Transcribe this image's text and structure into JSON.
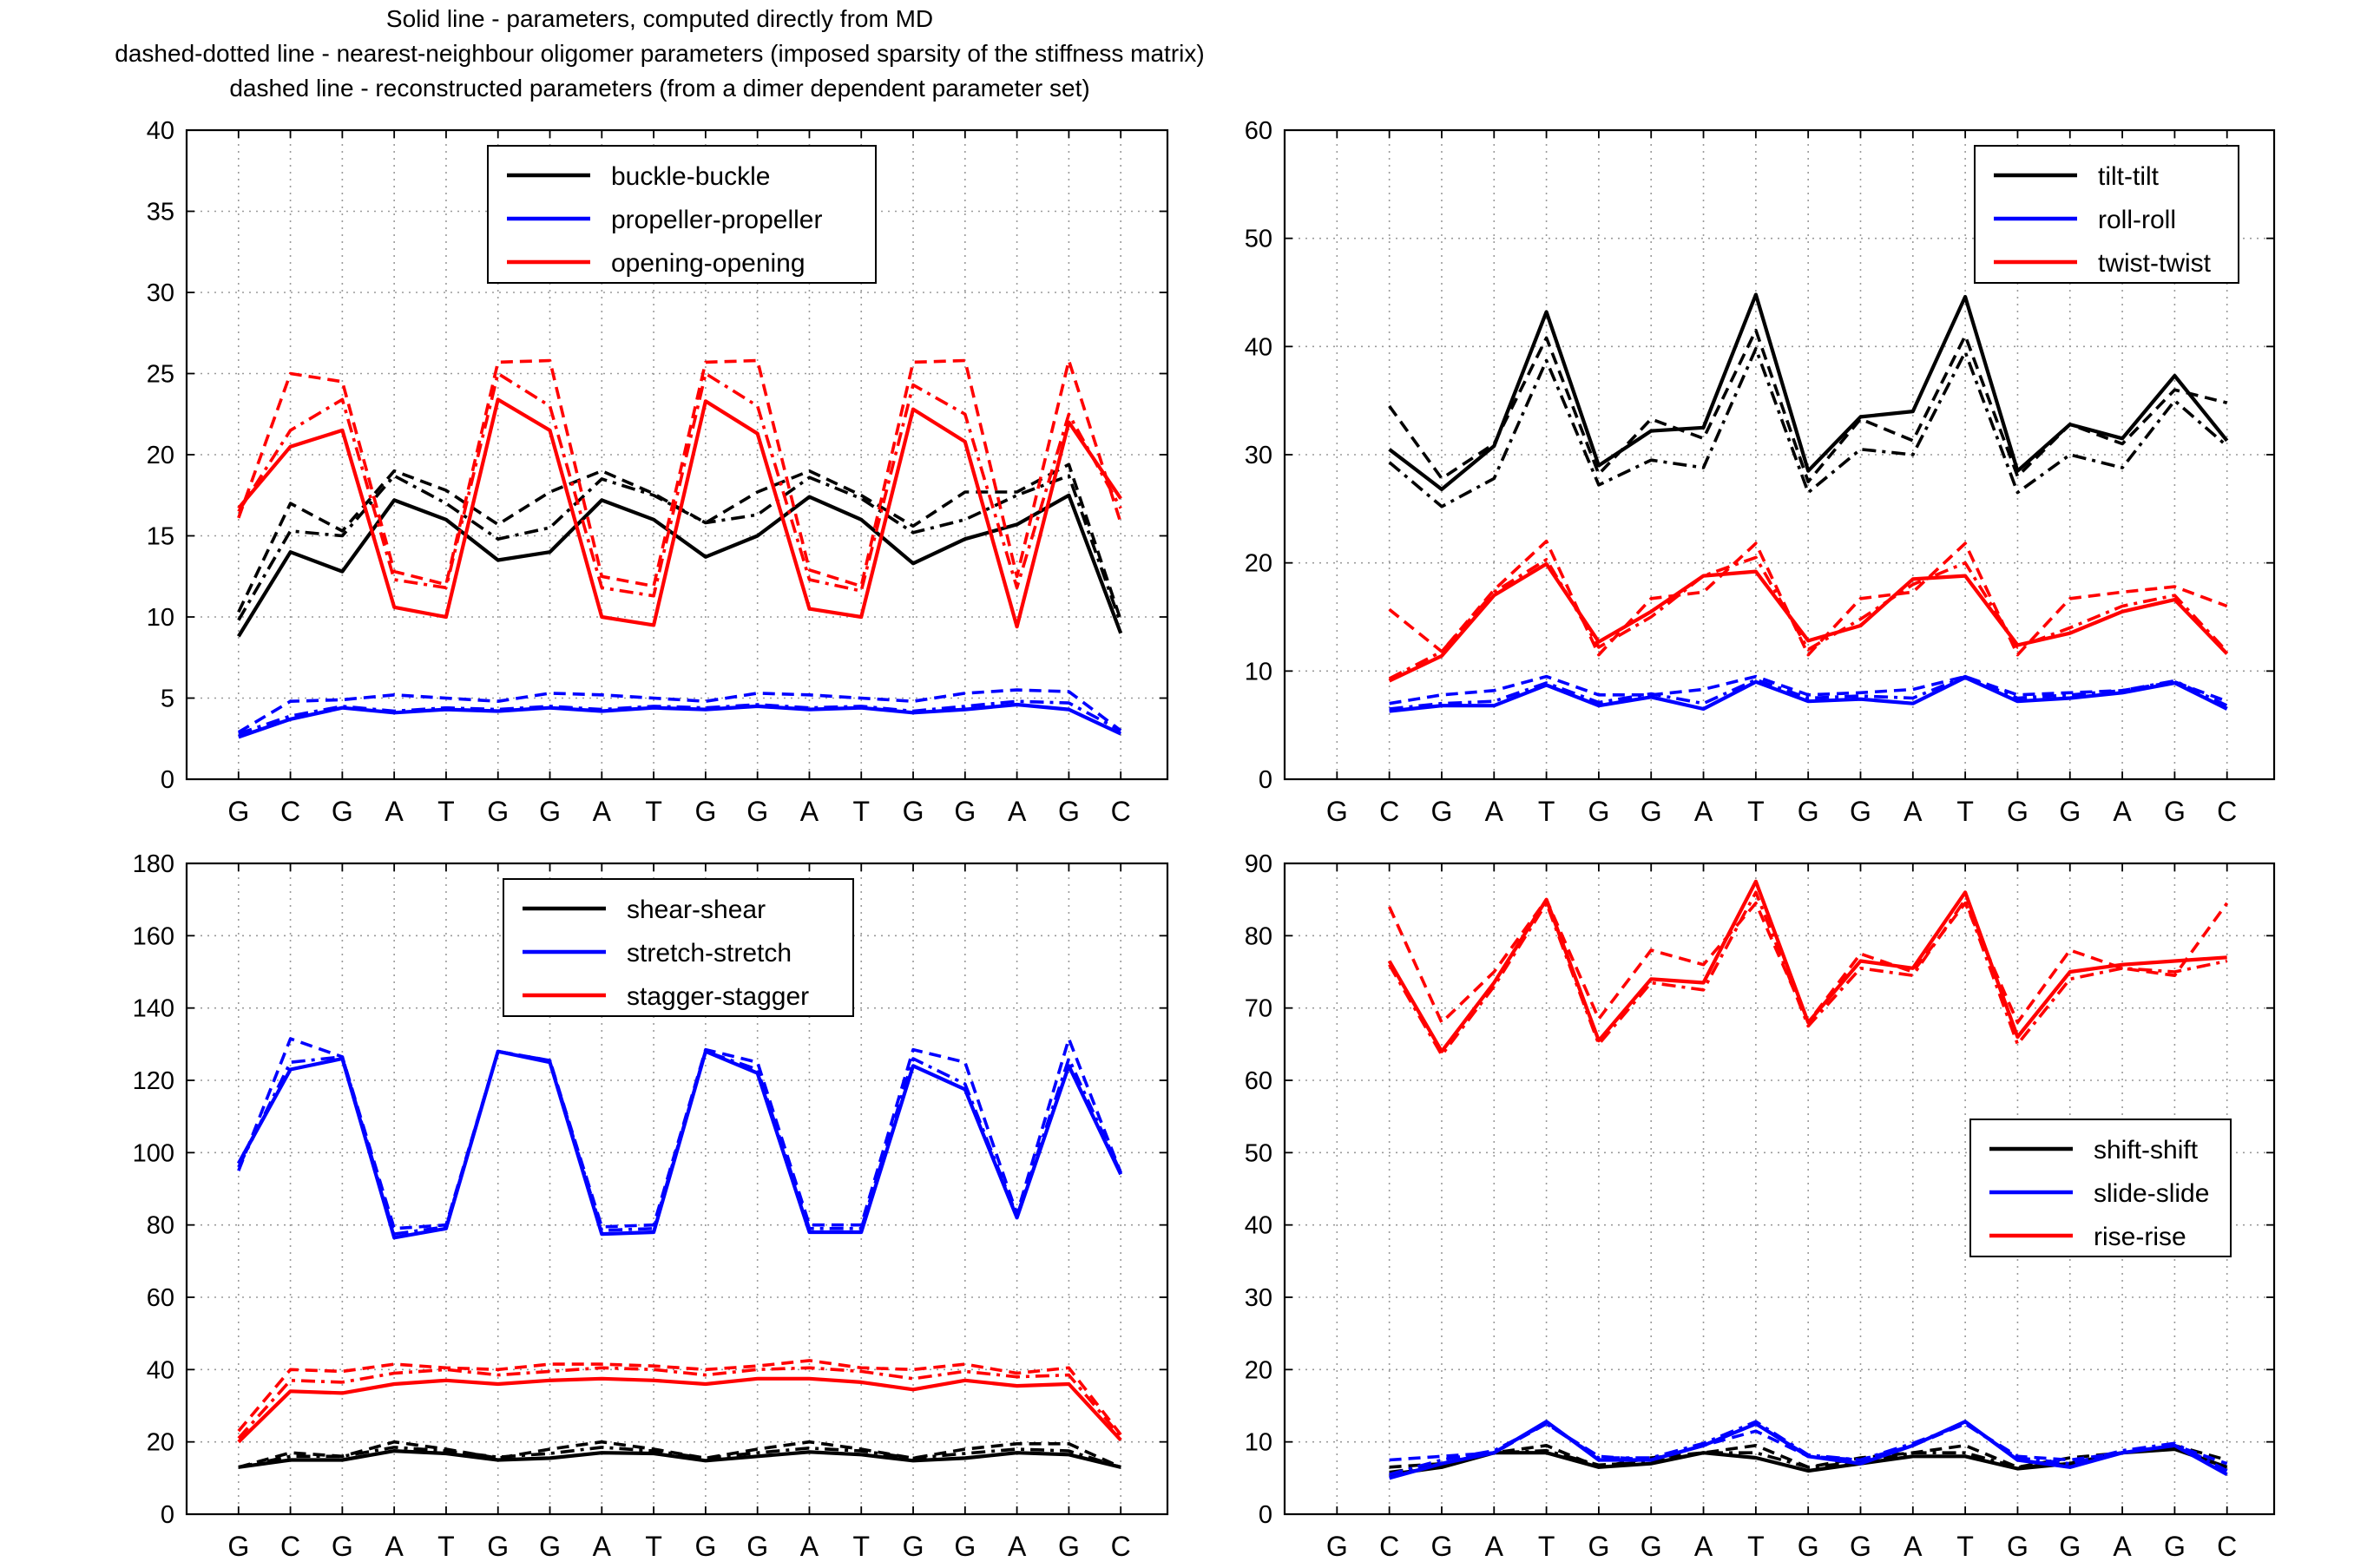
{
  "header": {
    "line1": "Solid line - parameters, computed directly from MD",
    "line2": "dashed-dotted line - nearest-neighbour oligomer parameters (imposed sparsity of the stiffness matrix)",
    "line3": "dashed line - reconstructed parameters (from a dimer dependent parameter set)"
  },
  "colors": {
    "black": "#000000",
    "blue": "#0000ff",
    "red": "#ff0000",
    "grid": "#9a9a9a"
  },
  "chart_data": [
    {
      "type": "line",
      "position_word": "top-left",
      "categories": [
        "G",
        "C",
        "G",
        "A",
        "T",
        "G",
        "G",
        "A",
        "T",
        "G",
        "G",
        "A",
        "T",
        "G",
        "G",
        "A",
        "G",
        "C"
      ],
      "x_index": [
        1,
        2,
        3,
        4,
        5,
        6,
        7,
        8,
        9,
        10,
        11,
        12,
        13,
        14,
        15,
        16,
        17,
        18
      ],
      "ylim": [
        0,
        40
      ],
      "yticks": [
        0,
        5,
        10,
        15,
        20,
        25,
        30,
        35,
        40
      ],
      "grid": true,
      "legend_placement": "top-center",
      "series": [
        {
          "name": "buckle-buckle",
          "color": "black",
          "solid": [
            8.8,
            14.0,
            12.8,
            17.2,
            16.0,
            13.5,
            14.0,
            17.2,
            16.0,
            13.7,
            15.0,
            17.4,
            16.0,
            13.3,
            14.8,
            15.7,
            17.5,
            9.0
          ],
          "dashdot": [
            9.8,
            15.3,
            15.0,
            18.7,
            17.0,
            14.8,
            15.5,
            18.5,
            17.5,
            15.8,
            16.3,
            18.6,
            17.3,
            15.2,
            16.0,
            17.5,
            18.7,
            9.6
          ],
          "dashed": [
            10.3,
            17.0,
            15.3,
            19.0,
            17.8,
            15.7,
            17.7,
            19.0,
            17.6,
            15.8,
            17.7,
            19.0,
            17.5,
            15.6,
            17.7,
            17.7,
            19.4,
            9.8
          ]
        },
        {
          "name": "propeller-propeller",
          "color": "blue",
          "solid": [
            2.6,
            3.7,
            4.4,
            4.1,
            4.3,
            4.2,
            4.4,
            4.2,
            4.4,
            4.3,
            4.5,
            4.3,
            4.4,
            4.1,
            4.3,
            4.6,
            4.3,
            2.8
          ],
          "dashdot": [
            2.8,
            3.9,
            4.5,
            4.2,
            4.4,
            4.3,
            4.5,
            4.3,
            4.5,
            4.4,
            4.6,
            4.4,
            4.5,
            4.2,
            4.5,
            4.8,
            4.7,
            3.0
          ],
          "dashed": [
            2.9,
            4.8,
            4.9,
            5.2,
            5.0,
            4.8,
            5.3,
            5.2,
            5.0,
            4.8,
            5.3,
            5.2,
            5.0,
            4.8,
            5.3,
            5.5,
            5.4,
            3.0
          ]
        },
        {
          "name": "opening-opening",
          "color": "red",
          "solid": [
            16.7,
            20.5,
            21.5,
            10.6,
            10.0,
            23.4,
            21.5,
            10.0,
            9.5,
            23.3,
            21.3,
            10.5,
            10.0,
            22.8,
            20.8,
            9.4,
            22.0,
            17.3
          ],
          "dashdot": [
            16.5,
            21.5,
            23.4,
            12.3,
            11.8,
            25.0,
            23.0,
            11.8,
            11.3,
            25.0,
            23.0,
            12.3,
            11.6,
            24.3,
            22.5,
            11.8,
            22.5,
            16.7
          ],
          "dashed": [
            16.1,
            25.0,
            24.5,
            12.8,
            12.0,
            25.7,
            25.8,
            12.5,
            11.9,
            25.7,
            25.8,
            12.9,
            11.9,
            25.7,
            25.8,
            12.5,
            25.8,
            15.8
          ]
        }
      ]
    },
    {
      "type": "line",
      "position_word": "top-right",
      "categories": [
        "G",
        "C",
        "G",
        "A",
        "T",
        "G",
        "G",
        "A",
        "T",
        "G",
        "G",
        "A",
        "T",
        "G",
        "G",
        "A",
        "G",
        "C"
      ],
      "x_index": [
        1,
        2,
        3,
        4,
        5,
        6,
        7,
        8,
        9,
        10,
        11,
        12,
        13,
        14,
        15,
        16,
        17,
        18
      ],
      "ylim": [
        0,
        60
      ],
      "yticks": [
        0,
        10,
        20,
        30,
        40,
        50,
        60
      ],
      "grid": true,
      "legend_placement": "top-right",
      "series": [
        {
          "name": "tilt-tilt",
          "color": "black",
          "solid": [
            null,
            30.5,
            26.8,
            30.8,
            43.2,
            29.0,
            32.2,
            32.5,
            44.8,
            28.5,
            33.5,
            34.0,
            44.6,
            28.5,
            32.8,
            31.5,
            37.3,
            31.3
          ],
          "dashdot": [
            null,
            29.3,
            25.2,
            27.8,
            38.7,
            27.2,
            29.5,
            28.8,
            39.8,
            26.5,
            30.5,
            30.0,
            39.5,
            26.5,
            30.0,
            28.8,
            35.0,
            30.8
          ],
          "dashed": [
            null,
            34.5,
            27.8,
            31.0,
            40.8,
            28.2,
            33.3,
            31.5,
            41.5,
            27.5,
            33.3,
            31.3,
            41.0,
            28.0,
            32.8,
            31.0,
            36.0,
            34.8
          ]
        },
        {
          "name": "roll-roll",
          "color": "blue",
          "solid": [
            null,
            6.3,
            6.8,
            6.8,
            8.7,
            6.8,
            7.6,
            6.5,
            9.0,
            7.2,
            7.4,
            7.0,
            9.4,
            7.2,
            7.5,
            8.0,
            8.9,
            6.5
          ],
          "dashdot": [
            null,
            6.5,
            7.0,
            7.2,
            8.9,
            7.1,
            7.9,
            7.0,
            9.2,
            7.5,
            7.7,
            7.5,
            9.5,
            7.5,
            7.8,
            8.2,
            9.1,
            6.8
          ],
          "dashed": [
            null,
            7.0,
            7.8,
            8.2,
            9.5,
            7.8,
            7.8,
            8.3,
            9.5,
            7.8,
            8.0,
            8.3,
            9.5,
            7.8,
            8.0,
            8.2,
            9.0,
            7.2
          ]
        },
        {
          "name": "twist-twist",
          "color": "red",
          "solid": [
            null,
            9.1,
            11.4,
            17.0,
            19.9,
            12.7,
            15.5,
            18.8,
            19.2,
            12.8,
            14.2,
            18.5,
            18.8,
            12.4,
            13.5,
            15.5,
            16.6,
            11.6
          ],
          "dashdot": [
            null,
            9.3,
            11.8,
            17.3,
            20.3,
            12.2,
            15.0,
            18.8,
            20.5,
            12.0,
            14.8,
            18.0,
            20.0,
            12.2,
            14.0,
            16.0,
            17.0,
            11.8
          ],
          "dashed": [
            null,
            15.7,
            11.8,
            17.5,
            22.0,
            11.5,
            16.7,
            17.3,
            21.8,
            11.5,
            16.7,
            17.3,
            21.8,
            11.5,
            16.7,
            17.3,
            17.8,
            16.0
          ]
        }
      ]
    },
    {
      "type": "line",
      "position_word": "bottom-left",
      "categories": [
        "G",
        "C",
        "G",
        "A",
        "T",
        "G",
        "G",
        "A",
        "T",
        "G",
        "G",
        "A",
        "T",
        "G",
        "G",
        "A",
        "G",
        "C"
      ],
      "x_index": [
        1,
        2,
        3,
        4,
        5,
        6,
        7,
        8,
        9,
        10,
        11,
        12,
        13,
        14,
        15,
        16,
        17,
        18
      ],
      "ylim": [
        0,
        180
      ],
      "yticks": [
        0,
        20,
        40,
        60,
        80,
        100,
        120,
        140,
        160,
        180
      ],
      "grid": true,
      "legend_placement": "top-center",
      "series": [
        {
          "name": "shear-shear",
          "color": "black",
          "solid": [
            13.0,
            15.0,
            15.0,
            17.5,
            16.8,
            15.0,
            15.5,
            17.0,
            16.8,
            14.8,
            16.0,
            17.2,
            16.5,
            14.8,
            15.5,
            17.0,
            16.5,
            13.0
          ],
          "dashdot": [
            13.0,
            16.0,
            16.0,
            18.5,
            17.5,
            15.8,
            16.8,
            18.5,
            17.5,
            15.5,
            17.0,
            18.3,
            17.5,
            15.5,
            16.8,
            18.0,
            17.5,
            13.0
          ],
          "dashed": [
            13.0,
            17.0,
            16.0,
            20.0,
            18.0,
            15.5,
            18.0,
            20.0,
            18.0,
            15.5,
            18.0,
            20.0,
            18.0,
            15.5,
            18.0,
            19.5,
            19.5,
            13.0
          ]
        },
        {
          "name": "stretch-stretch",
          "color": "blue",
          "solid": [
            97.0,
            123.0,
            126.0,
            76.5,
            79.0,
            128.0,
            125.0,
            77.5,
            78.0,
            128.0,
            122.0,
            78.0,
            78.0,
            124.0,
            117.5,
            82.0,
            124.0,
            94.0
          ],
          "dashdot": [
            96.0,
            125.0,
            126.5,
            77.5,
            79.5,
            128.0,
            125.5,
            78.5,
            79.0,
            128.0,
            123.0,
            79.0,
            79.0,
            126.0,
            119.0,
            82.5,
            126.0,
            94.5
          ],
          "dashed": [
            95.0,
            131.5,
            126.5,
            79.0,
            80.0,
            128.0,
            125.5,
            79.5,
            80.0,
            128.5,
            125.0,
            80.0,
            80.0,
            128.5,
            125.0,
            83.0,
            131.5,
            94.5
          ]
        },
        {
          "name": "stagger-stagger",
          "color": "red",
          "solid": [
            20.0,
            34.0,
            33.5,
            36.0,
            37.0,
            36.0,
            37.0,
            37.5,
            37.0,
            36.0,
            37.5,
            37.5,
            36.5,
            34.5,
            37.0,
            35.5,
            36.0,
            20.5
          ],
          "dashdot": [
            21.0,
            37.0,
            36.5,
            39.0,
            40.0,
            38.5,
            39.5,
            40.5,
            40.0,
            38.5,
            40.0,
            40.5,
            39.5,
            37.5,
            39.5,
            38.0,
            38.5,
            21.5
          ],
          "dashed": [
            23.0,
            40.0,
            39.5,
            41.5,
            40.5,
            40.0,
            41.5,
            41.5,
            41.0,
            40.0,
            41.0,
            42.5,
            40.5,
            40.0,
            41.5,
            39.0,
            40.5,
            22.0
          ]
        }
      ]
    },
    {
      "type": "line",
      "position_word": "bottom-right",
      "categories": [
        "G",
        "C",
        "G",
        "A",
        "T",
        "G",
        "G",
        "A",
        "T",
        "G",
        "G",
        "A",
        "T",
        "G",
        "G",
        "A",
        "G",
        "C"
      ],
      "x_index": [
        1,
        2,
        3,
        4,
        5,
        6,
        7,
        8,
        9,
        10,
        11,
        12,
        13,
        14,
        15,
        16,
        17,
        18
      ],
      "ylim": [
        0,
        90
      ],
      "yticks": [
        0,
        10,
        20,
        30,
        40,
        50,
        60,
        70,
        80,
        90
      ],
      "grid": true,
      "legend_placement": "center-right",
      "series": [
        {
          "name": "shift-shift",
          "color": "black",
          "solid": [
            null,
            5.5,
            6.5,
            8.5,
            8.5,
            6.5,
            7.0,
            8.5,
            7.8,
            6.0,
            7.0,
            8.0,
            8.0,
            6.3,
            7.0,
            8.5,
            9.0,
            6.5
          ],
          "dashdot": [
            null,
            5.8,
            6.8,
            8.5,
            8.8,
            6.8,
            7.2,
            8.5,
            8.5,
            6.5,
            7.2,
            8.5,
            8.5,
            6.5,
            7.0,
            8.5,
            9.0,
            6.5
          ],
          "dashed": [
            null,
            6.5,
            7.0,
            8.5,
            9.5,
            6.5,
            7.8,
            8.5,
            9.5,
            6.5,
            7.8,
            8.5,
            9.5,
            6.5,
            7.8,
            8.5,
            9.5,
            7.5
          ]
        },
        {
          "name": "slide-slide",
          "color": "blue",
          "solid": [
            null,
            5.0,
            7.0,
            8.5,
            12.8,
            7.5,
            7.5,
            9.5,
            12.5,
            8.0,
            7.0,
            9.5,
            12.8,
            7.5,
            6.5,
            8.5,
            9.5,
            5.5
          ],
          "dashdot": [
            null,
            5.5,
            7.5,
            8.8,
            12.5,
            7.8,
            7.8,
            9.8,
            12.8,
            8.2,
            7.5,
            9.8,
            12.5,
            7.8,
            7.0,
            8.8,
            9.8,
            6.0
          ],
          "dashed": [
            null,
            7.5,
            8.0,
            8.5,
            12.5,
            8.0,
            7.5,
            9.5,
            11.5,
            8.0,
            7.5,
            9.5,
            12.5,
            8.0,
            7.5,
            8.5,
            9.5,
            7.0
          ]
        },
        {
          "name": "rise-rise",
          "color": "red",
          "solid": [
            null,
            76.5,
            64.0,
            73.5,
            85.0,
            65.5,
            74.0,
            73.5,
            87.5,
            68.0,
            76.5,
            75.5,
            86.0,
            66.0,
            75.0,
            76.0,
            76.5,
            77.0
          ],
          "dashdot": [
            null,
            76.0,
            63.5,
            73.0,
            84.5,
            65.0,
            73.5,
            72.5,
            86.0,
            67.5,
            75.5,
            74.5,
            85.0,
            65.0,
            74.0,
            75.5,
            75.0,
            76.5
          ],
          "dashed": [
            null,
            84.0,
            68.0,
            75.0,
            85.0,
            68.5,
            78.0,
            76.0,
            84.5,
            68.0,
            77.5,
            75.0,
            84.5,
            68.0,
            78.0,
            75.5,
            74.5,
            84.5
          ]
        }
      ]
    }
  ]
}
